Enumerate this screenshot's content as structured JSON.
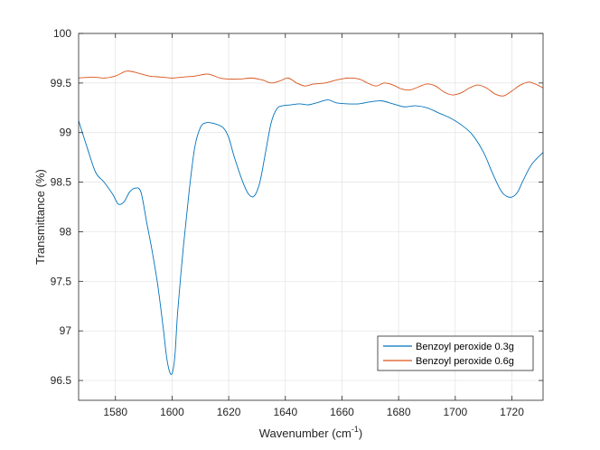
{
  "chart_data": {
    "type": "line",
    "title": "",
    "xlabel": "Wavenumber (cm",
    "xlabel_sup": "-1",
    "xlabel_close": ")",
    "ylabel": "Transmittance (%)",
    "xlim": [
      1567,
      1731
    ],
    "ylim": [
      96.3,
      100
    ],
    "xticks": [
      1580,
      1600,
      1620,
      1640,
      1660,
      1680,
      1700,
      1720
    ],
    "yticks": [
      96.5,
      97,
      97.5,
      98,
      98.5,
      99,
      99.5,
      100
    ],
    "ytick_labels": [
      "96.5",
      "97",
      "97.5",
      "98",
      "98.5",
      "99",
      "99.5",
      "100"
    ],
    "grid": true,
    "legend_position": "lower-right",
    "series": [
      {
        "name": "Benzoyl peroxide 0.3g",
        "color": "#0072BD",
        "x": [
          1567,
          1570,
          1573,
          1576,
          1579,
          1581,
          1583,
          1585,
          1587,
          1589,
          1591,
          1593,
          1595,
          1597,
          1598,
          1599,
          1600,
          1601,
          1602,
          1604,
          1606,
          1608,
          1610,
          1612,
          1615,
          1618,
          1620,
          1622,
          1625,
          1627,
          1629,
          1631,
          1633,
          1635,
          1637,
          1639,
          1642,
          1645,
          1648,
          1651,
          1655,
          1658,
          1662,
          1666,
          1670,
          1674,
          1678,
          1682,
          1686,
          1690,
          1694,
          1698,
          1702,
          1706,
          1710,
          1713,
          1716,
          1718,
          1720,
          1722,
          1724,
          1727,
          1731
        ],
        "y": [
          99.12,
          98.85,
          98.6,
          98.5,
          98.38,
          98.28,
          98.3,
          98.4,
          98.44,
          98.4,
          98.1,
          97.8,
          97.45,
          97.0,
          96.75,
          96.6,
          96.57,
          96.75,
          97.2,
          97.85,
          98.4,
          98.85,
          99.05,
          99.1,
          99.09,
          99.05,
          98.95,
          98.75,
          98.5,
          98.38,
          98.36,
          98.5,
          98.8,
          99.1,
          99.24,
          99.27,
          99.28,
          99.29,
          99.28,
          99.3,
          99.33,
          99.3,
          99.29,
          99.29,
          99.31,
          99.32,
          99.29,
          99.26,
          99.27,
          99.25,
          99.2,
          99.15,
          99.08,
          98.98,
          98.8,
          98.6,
          98.42,
          98.36,
          98.35,
          98.4,
          98.52,
          98.68,
          98.8
        ]
      },
      {
        "name": "Benzoyl peroxide 0.6g",
        "color": "#D95319",
        "x": [
          1567,
          1572,
          1576,
          1580,
          1584,
          1588,
          1592,
          1596,
          1600,
          1604,
          1608,
          1612,
          1614,
          1617,
          1620,
          1624,
          1628,
          1632,
          1635,
          1638,
          1641,
          1644,
          1647,
          1650,
          1654,
          1658,
          1662,
          1666,
          1669,
          1672,
          1675,
          1678,
          1681,
          1684,
          1687,
          1690,
          1693,
          1696,
          1699,
          1702,
          1705,
          1708,
          1711,
          1714,
          1717,
          1720,
          1723,
          1726,
          1729,
          1731
        ],
        "y": [
          99.55,
          99.56,
          99.55,
          99.57,
          99.62,
          99.6,
          99.57,
          99.56,
          99.55,
          99.56,
          99.57,
          99.59,
          99.58,
          99.55,
          99.54,
          99.54,
          99.55,
          99.53,
          99.5,
          99.52,
          99.55,
          99.5,
          99.47,
          99.49,
          99.5,
          99.53,
          99.55,
          99.54,
          99.5,
          99.47,
          99.5,
          99.48,
          99.44,
          99.43,
          99.46,
          99.49,
          99.47,
          99.41,
          99.38,
          99.4,
          99.45,
          99.48,
          99.45,
          99.39,
          99.37,
          99.42,
          99.48,
          99.51,
          99.48,
          99.45
        ]
      }
    ]
  }
}
